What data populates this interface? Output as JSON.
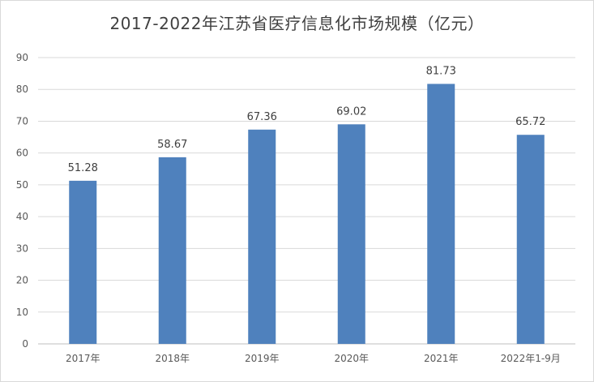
{
  "chart_data": {
    "type": "bar",
    "title": "2017-2022年江苏省医疗信息化市场规模（亿元）",
    "categories": [
      "2017年",
      "2018年",
      "2019年",
      "2020年",
      "2021年",
      "2022年1-9月"
    ],
    "values": [
      51.28,
      58.67,
      67.36,
      69.02,
      81.73,
      65.72
    ],
    "value_labels": [
      "51.28",
      "58.67",
      "67.36",
      "69.02",
      "81.73",
      "65.72"
    ],
    "ylim": [
      0,
      90
    ],
    "yticks": [
      0,
      10,
      20,
      30,
      40,
      50,
      60,
      70,
      80,
      90
    ],
    "grid": true,
    "legend": "none",
    "bar_color": "#4f81bd"
  }
}
